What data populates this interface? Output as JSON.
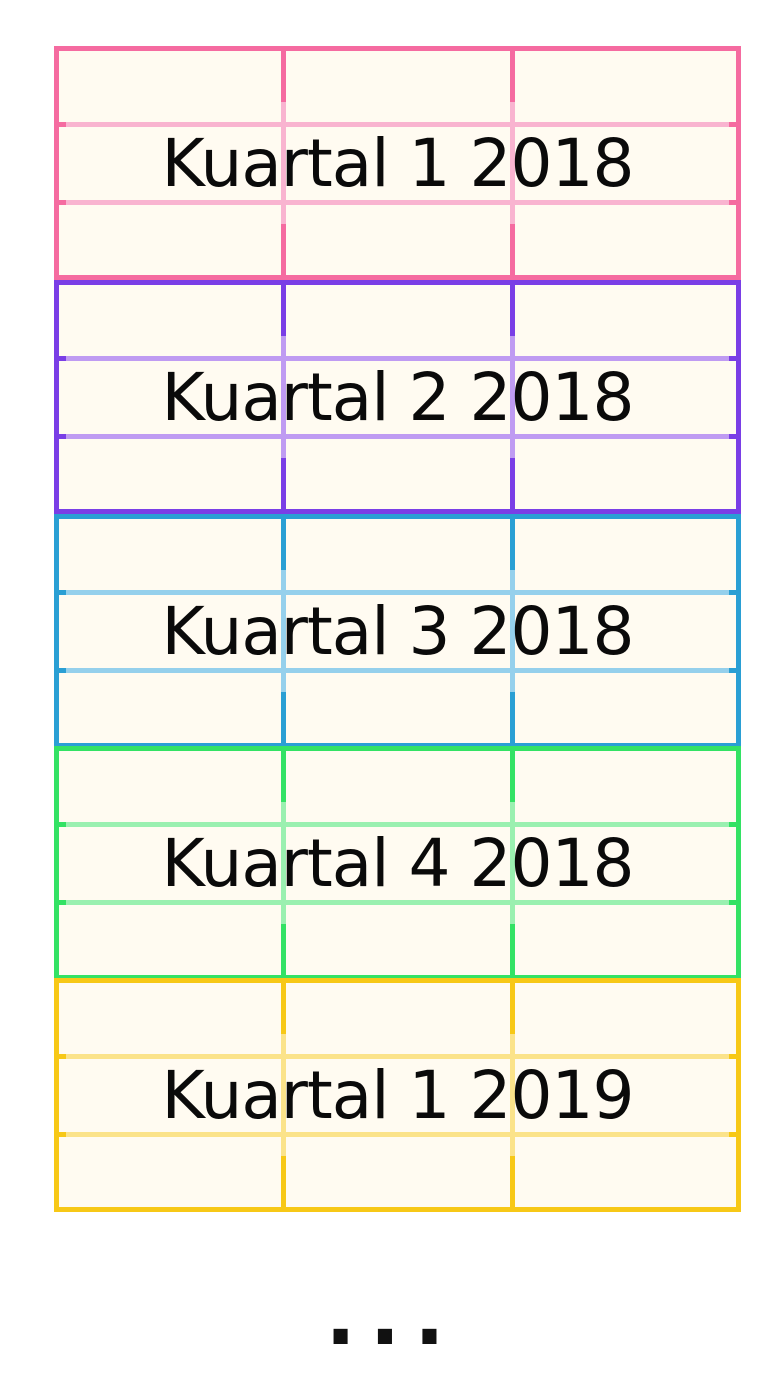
{
  "blocks": [
    {
      "label": "Kuartal 1 2018",
      "color": "#f56ba0",
      "light": "#f9b4d0"
    },
    {
      "label": "Kuartal 2 2018",
      "color": "#7a3ee6",
      "light": "#bf9bf2"
    },
    {
      "label": "Kuartal 3 2018",
      "color": "#2a9fd4",
      "light": "#95d0ec"
    },
    {
      "label": "Kuartal 4 2018",
      "color": "#33e264",
      "light": "#9af0b0"
    },
    {
      "label": "Kuartal 1 2019",
      "color": "#f7c816",
      "light": "#fbe38a"
    }
  ],
  "continuation": "..."
}
